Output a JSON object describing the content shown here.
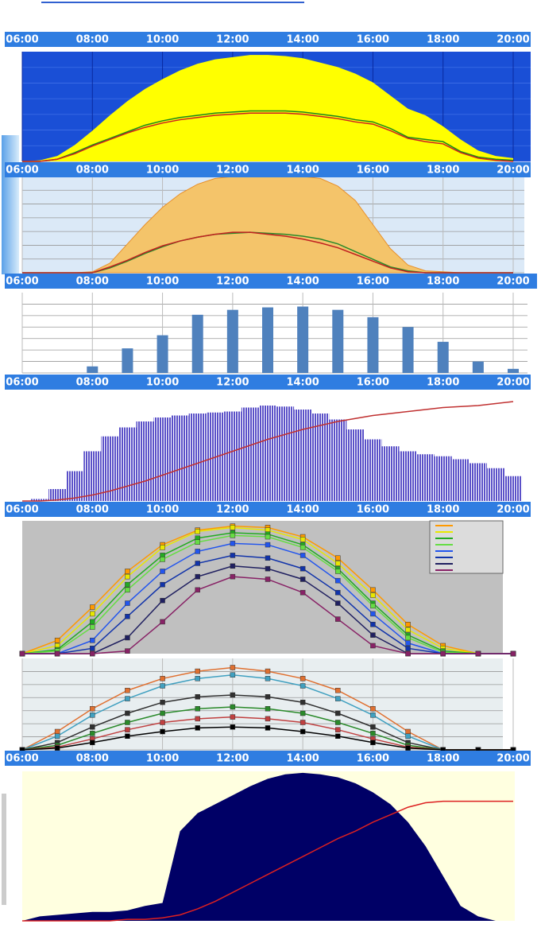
{
  "chart_data": [
    {
      "type": "area",
      "background": "#1a4fd6",
      "grid": true,
      "xlim": [
        6,
        20
      ],
      "ylim": [
        0,
        100
      ],
      "xticks": [
        {
          "value": 6,
          "label": "06:00"
        },
        {
          "value": 8,
          "label": "08:00"
        },
        {
          "value": 10,
          "label": "10:00"
        },
        {
          "value": 12,
          "label": "12:00"
        },
        {
          "value": 14,
          "label": "14:00"
        },
        {
          "value": 16,
          "label": "16:00"
        },
        {
          "value": 18,
          "label": "18:00"
        },
        {
          "value": 20,
          "label": "20:00"
        }
      ],
      "x": [
        6,
        6.5,
        7,
        7.5,
        8,
        8.5,
        9,
        9.5,
        10,
        10.5,
        11,
        11.5,
        12,
        12.5,
        13,
        13.5,
        14,
        14.5,
        15,
        15.5,
        16,
        16.5,
        17,
        17.5,
        18,
        18.5,
        19,
        19.5,
        20
      ],
      "series": [
        {
          "style": "area",
          "color": "#ffff00",
          "values": [
            0,
            1,
            5,
            15,
            28,
            42,
            55,
            66,
            75,
            83,
            89,
            93,
            95,
            97,
            97,
            96,
            94,
            90,
            86,
            80,
            72,
            60,
            48,
            42,
            32,
            20,
            10,
            5,
            3
          ]
        },
        {
          "style": "line",
          "color": "#1a8a1a",
          "values": [
            0,
            0,
            2,
            8,
            15,
            21,
            27,
            33,
            37,
            40,
            42,
            44,
            45,
            46,
            46,
            46,
            45,
            43,
            41,
            38,
            36,
            30,
            22,
            20,
            18,
            9,
            4,
            2,
            1
          ]
        },
        {
          "style": "line",
          "color": "#cc2020",
          "values": [
            0,
            0,
            2,
            7,
            14,
            20,
            26,
            31,
            35,
            38,
            40,
            42,
            43,
            44,
            44,
            44,
            43,
            41,
            39,
            36,
            34,
            28,
            21,
            18,
            16,
            8,
            3,
            1,
            0
          ]
        }
      ]
    },
    {
      "type": "area",
      "background": "#dbe9f7",
      "grid": true,
      "xlim": [
        6,
        20
      ],
      "ylim": [
        0,
        100
      ],
      "xticks": [
        {
          "value": 6,
          "label": "06:00"
        },
        {
          "value": 8,
          "label": "08:00"
        },
        {
          "value": 10,
          "label": "10:00"
        },
        {
          "value": 12,
          "label": "12:00"
        },
        {
          "value": 14,
          "label": "14:00"
        },
        {
          "value": 16,
          "label": "16:00"
        },
        {
          "value": 18,
          "label": "18:00"
        },
        {
          "value": 20,
          "label": "20:00"
        }
      ],
      "x": [
        6,
        6.5,
        7,
        7.5,
        8,
        8.5,
        9,
        9.5,
        10,
        10.5,
        11,
        11.5,
        12,
        12.5,
        13,
        13.5,
        14,
        14.5,
        15,
        15.5,
        16,
        16.5,
        17,
        17.5,
        18,
        18.5,
        19,
        19.5,
        20
      ],
      "series": [
        {
          "style": "area",
          "color": "#f4c46a",
          "values": [
            0,
            0,
            0,
            0,
            1,
            10,
            30,
            50,
            68,
            82,
            92,
            98,
            100,
            100,
            100,
            100,
            100,
            98,
            90,
            75,
            50,
            25,
            8,
            2,
            1,
            0,
            0,
            0,
            0
          ]
        },
        {
          "style": "line",
          "color": "#2a8a2a",
          "values": [
            0,
            0,
            0,
            0,
            0,
            5,
            12,
            20,
            27,
            33,
            37,
            40,
            41,
            42,
            41,
            40,
            38,
            35,
            30,
            22,
            14,
            6,
            2,
            0,
            0,
            0,
            0,
            0,
            0
          ]
        },
        {
          "style": "line",
          "color": "#c02020",
          "values": [
            0,
            0,
            0,
            0,
            0,
            6,
            13,
            21,
            28,
            33,
            37,
            40,
            42,
            42,
            40,
            38,
            35,
            31,
            26,
            19,
            12,
            5,
            1,
            0,
            0,
            0,
            0,
            0,
            0
          ]
        }
      ]
    },
    {
      "type": "bar",
      "background": "#ffffff",
      "grid": true,
      "xlim": [
        6,
        20
      ],
      "ylim": [
        0,
        98
      ],
      "color": "#4f81bd",
      "xticks": [
        {
          "value": 6,
          "label": "06:00"
        },
        {
          "value": 8,
          "label": "08:00"
        },
        {
          "value": 10,
          "label": "10:00"
        },
        {
          "value": 12,
          "label": "12:00"
        },
        {
          "value": 14,
          "label": "14:00"
        },
        {
          "value": 16,
          "label": "16:00"
        },
        {
          "value": 18,
          "label": "18:00"
        },
        {
          "value": 20,
          "label": "20:00"
        }
      ],
      "x": [
        8,
        9,
        10,
        11,
        12,
        13,
        14,
        15,
        16,
        17,
        18,
        19,
        20
      ],
      "values": [
        8,
        30,
        46,
        71,
        77,
        80,
        81,
        77,
        68,
        56,
        38,
        14,
        5
      ]
    },
    {
      "type": "bar",
      "background": "#ffffff",
      "grid": false,
      "xlim": [
        6,
        20
      ],
      "ylim": [
        0,
        100
      ],
      "xticks": [
        {
          "value": 6,
          "label": "06:00"
        },
        {
          "value": 8,
          "label": "08:00"
        },
        {
          "value": 10,
          "label": "10:00"
        },
        {
          "value": 12,
          "label": "12:00"
        },
        {
          "value": 14,
          "label": "14:00"
        },
        {
          "value": 16,
          "label": "16:00"
        },
        {
          "value": 18,
          "label": "18:00"
        },
        {
          "value": 20,
          "label": "20:00"
        }
      ],
      "x": [
        6,
        6.5,
        7,
        7.5,
        8,
        8.5,
        9,
        9.5,
        10,
        10.5,
        11,
        11.5,
        12,
        12.5,
        13,
        13.5,
        14,
        14.5,
        15,
        15.5,
        16,
        16.5,
        17,
        17.5,
        18,
        18.5,
        19,
        19.5,
        20
      ],
      "series": [
        {
          "style": "bar",
          "color": "#5a50c8",
          "values": [
            0,
            2,
            12,
            30,
            50,
            65,
            74,
            80,
            84,
            86,
            88,
            89,
            90,
            94,
            96,
            95,
            92,
            88,
            82,
            72,
            62,
            55,
            50,
            47,
            45,
            42,
            38,
            33,
            25
          ]
        },
        {
          "style": "line",
          "color": "#c03030",
          "values": [
            0,
            0,
            1,
            3,
            6,
            10,
            15,
            20,
            26,
            32,
            38,
            44,
            50,
            56,
            62,
            67,
            72,
            76,
            80,
            83,
            86,
            88,
            90,
            92,
            94,
            95,
            96,
            98,
            100
          ]
        }
      ]
    },
    {
      "type": "line",
      "background": "#c0c0c0",
      "grid": false,
      "markers": true,
      "xlim": [
        6,
        20
      ],
      "ylim": [
        0,
        100
      ],
      "xticks": [
        {
          "value": 6,
          "label": "06:00"
        },
        {
          "value": 8,
          "label": "08:00"
        },
        {
          "value": 10,
          "label": "10:00"
        },
        {
          "value": 12,
          "label": "12:00"
        },
        {
          "value": 14,
          "label": "14:00"
        },
        {
          "value": 16,
          "label": "16:00"
        },
        {
          "value": 18,
          "label": "18:00"
        },
        {
          "value": 20,
          "label": "20:00"
        }
      ],
      "x": [
        6,
        7,
        8,
        9,
        10,
        11,
        12,
        13,
        14,
        15,
        16,
        17,
        18,
        19,
        20
      ],
      "series": [
        {
          "style": "line",
          "color": "#ff9900",
          "values": [
            0,
            10,
            35,
            62,
            82,
            93,
            96,
            95,
            88,
            72,
            48,
            22,
            6,
            0,
            0
          ]
        },
        {
          "style": "line",
          "color": "#e8e800",
          "values": [
            0,
            6,
            30,
            58,
            80,
            92,
            95,
            93,
            86,
            68,
            44,
            18,
            4,
            0,
            0
          ]
        },
        {
          "style": "line",
          "color": "#22aa22",
          "values": [
            0,
            3,
            24,
            52,
            74,
            87,
            91,
            90,
            82,
            64,
            38,
            14,
            2,
            0,
            0
          ]
        },
        {
          "style": "line",
          "color": "#66dd44",
          "values": [
            0,
            2,
            20,
            48,
            71,
            84,
            89,
            88,
            80,
            62,
            36,
            12,
            1,
            0,
            0
          ]
        },
        {
          "style": "line",
          "color": "#2255ee",
          "values": [
            0,
            0,
            10,
            38,
            62,
            77,
            83,
            82,
            74,
            55,
            30,
            8,
            0,
            0,
            0
          ]
        },
        {
          "style": "line",
          "color": "#1133aa",
          "values": [
            0,
            0,
            4,
            28,
            52,
            68,
            74,
            72,
            64,
            46,
            22,
            4,
            0,
            0,
            0
          ]
        },
        {
          "style": "line",
          "color": "#202060",
          "values": [
            0,
            0,
            0,
            12,
            40,
            58,
            66,
            64,
            56,
            38,
            14,
            0,
            0,
            0,
            0
          ]
        },
        {
          "style": "line",
          "color": "#882266",
          "values": [
            0,
            0,
            0,
            2,
            24,
            48,
            58,
            56,
            46,
            26,
            6,
            0,
            0,
            0,
            0
          ]
        }
      ]
    },
    {
      "type": "line",
      "background": "#e8eef0",
      "grid": true,
      "markers": true,
      "xlim": [
        6,
        20
      ],
      "ylim": [
        0,
        100
      ],
      "xticks": [
        {
          "value": 6,
          "label": "06:00"
        },
        {
          "value": 8,
          "label": "08:00"
        },
        {
          "value": 10,
          "label": "10:00"
        },
        {
          "value": 12,
          "label": "12:00"
        },
        {
          "value": 14,
          "label": "14:00"
        },
        {
          "value": 16,
          "label": "16:00"
        },
        {
          "value": 18,
          "label": "18:00"
        },
        {
          "value": 20,
          "label": "20:00"
        }
      ],
      "x": [
        6,
        7,
        8,
        9,
        10,
        11,
        12,
        13,
        14,
        15,
        16,
        17,
        18,
        19,
        20
      ],
      "series": [
        {
          "style": "line",
          "color": "#e07030",
          "values": [
            0,
            20,
            45,
            65,
            78,
            86,
            90,
            86,
            78,
            65,
            45,
            20,
            0,
            0,
            0
          ]
        },
        {
          "style": "line",
          "color": "#40a0c0",
          "values": [
            0,
            15,
            38,
            56,
            70,
            78,
            82,
            78,
            70,
            56,
            38,
            15,
            0,
            0,
            0
          ]
        },
        {
          "style": "line",
          "color": "#303030",
          "values": [
            0,
            8,
            25,
            40,
            52,
            58,
            60,
            58,
            52,
            40,
            25,
            8,
            0,
            0,
            0
          ]
        },
        {
          "style": "line",
          "color": "#2a8a2a",
          "values": [
            0,
            5,
            18,
            30,
            40,
            45,
            47,
            45,
            40,
            30,
            18,
            5,
            0,
            0,
            0
          ]
        },
        {
          "style": "line",
          "color": "#c04040",
          "values": [
            0,
            3,
            12,
            22,
            30,
            34,
            36,
            34,
            30,
            22,
            12,
            3,
            0,
            0,
            0
          ]
        },
        {
          "style": "line",
          "color": "#000000",
          "values": [
            0,
            2,
            8,
            15,
            20,
            24,
            25,
            24,
            20,
            15,
            8,
            2,
            0,
            0,
            0
          ]
        }
      ]
    },
    {
      "type": "area",
      "background": "#ffffe0",
      "grid": false,
      "xlim": [
        6,
        20
      ],
      "ylim": [
        0,
        100
      ],
      "x": [
        6,
        6.5,
        7,
        7.5,
        8,
        8.5,
        9,
        9.5,
        10,
        10.5,
        11,
        11.5,
        12,
        12.5,
        13,
        13.5,
        14,
        14.5,
        15,
        15.5,
        16,
        16.5,
        17,
        17.5,
        18,
        18.5,
        19,
        19.5,
        20
      ],
      "series": [
        {
          "style": "area",
          "color": "#000066",
          "values": [
            0,
            3,
            4,
            5,
            6,
            6,
            7,
            10,
            12,
            60,
            72,
            78,
            84,
            90,
            95,
            98,
            99,
            98,
            96,
            92,
            86,
            78,
            66,
            50,
            30,
            10,
            3,
            0,
            0
          ]
        },
        {
          "style": "line",
          "color": "#dd2020",
          "values": [
            0,
            0,
            0,
            0,
            0,
            0,
            1,
            1,
            2,
            4,
            8,
            13,
            19,
            25,
            31,
            37,
            43,
            49,
            55,
            60,
            66,
            71,
            76,
            79,
            80,
            80,
            80,
            80,
            80
          ]
        }
      ]
    }
  ]
}
